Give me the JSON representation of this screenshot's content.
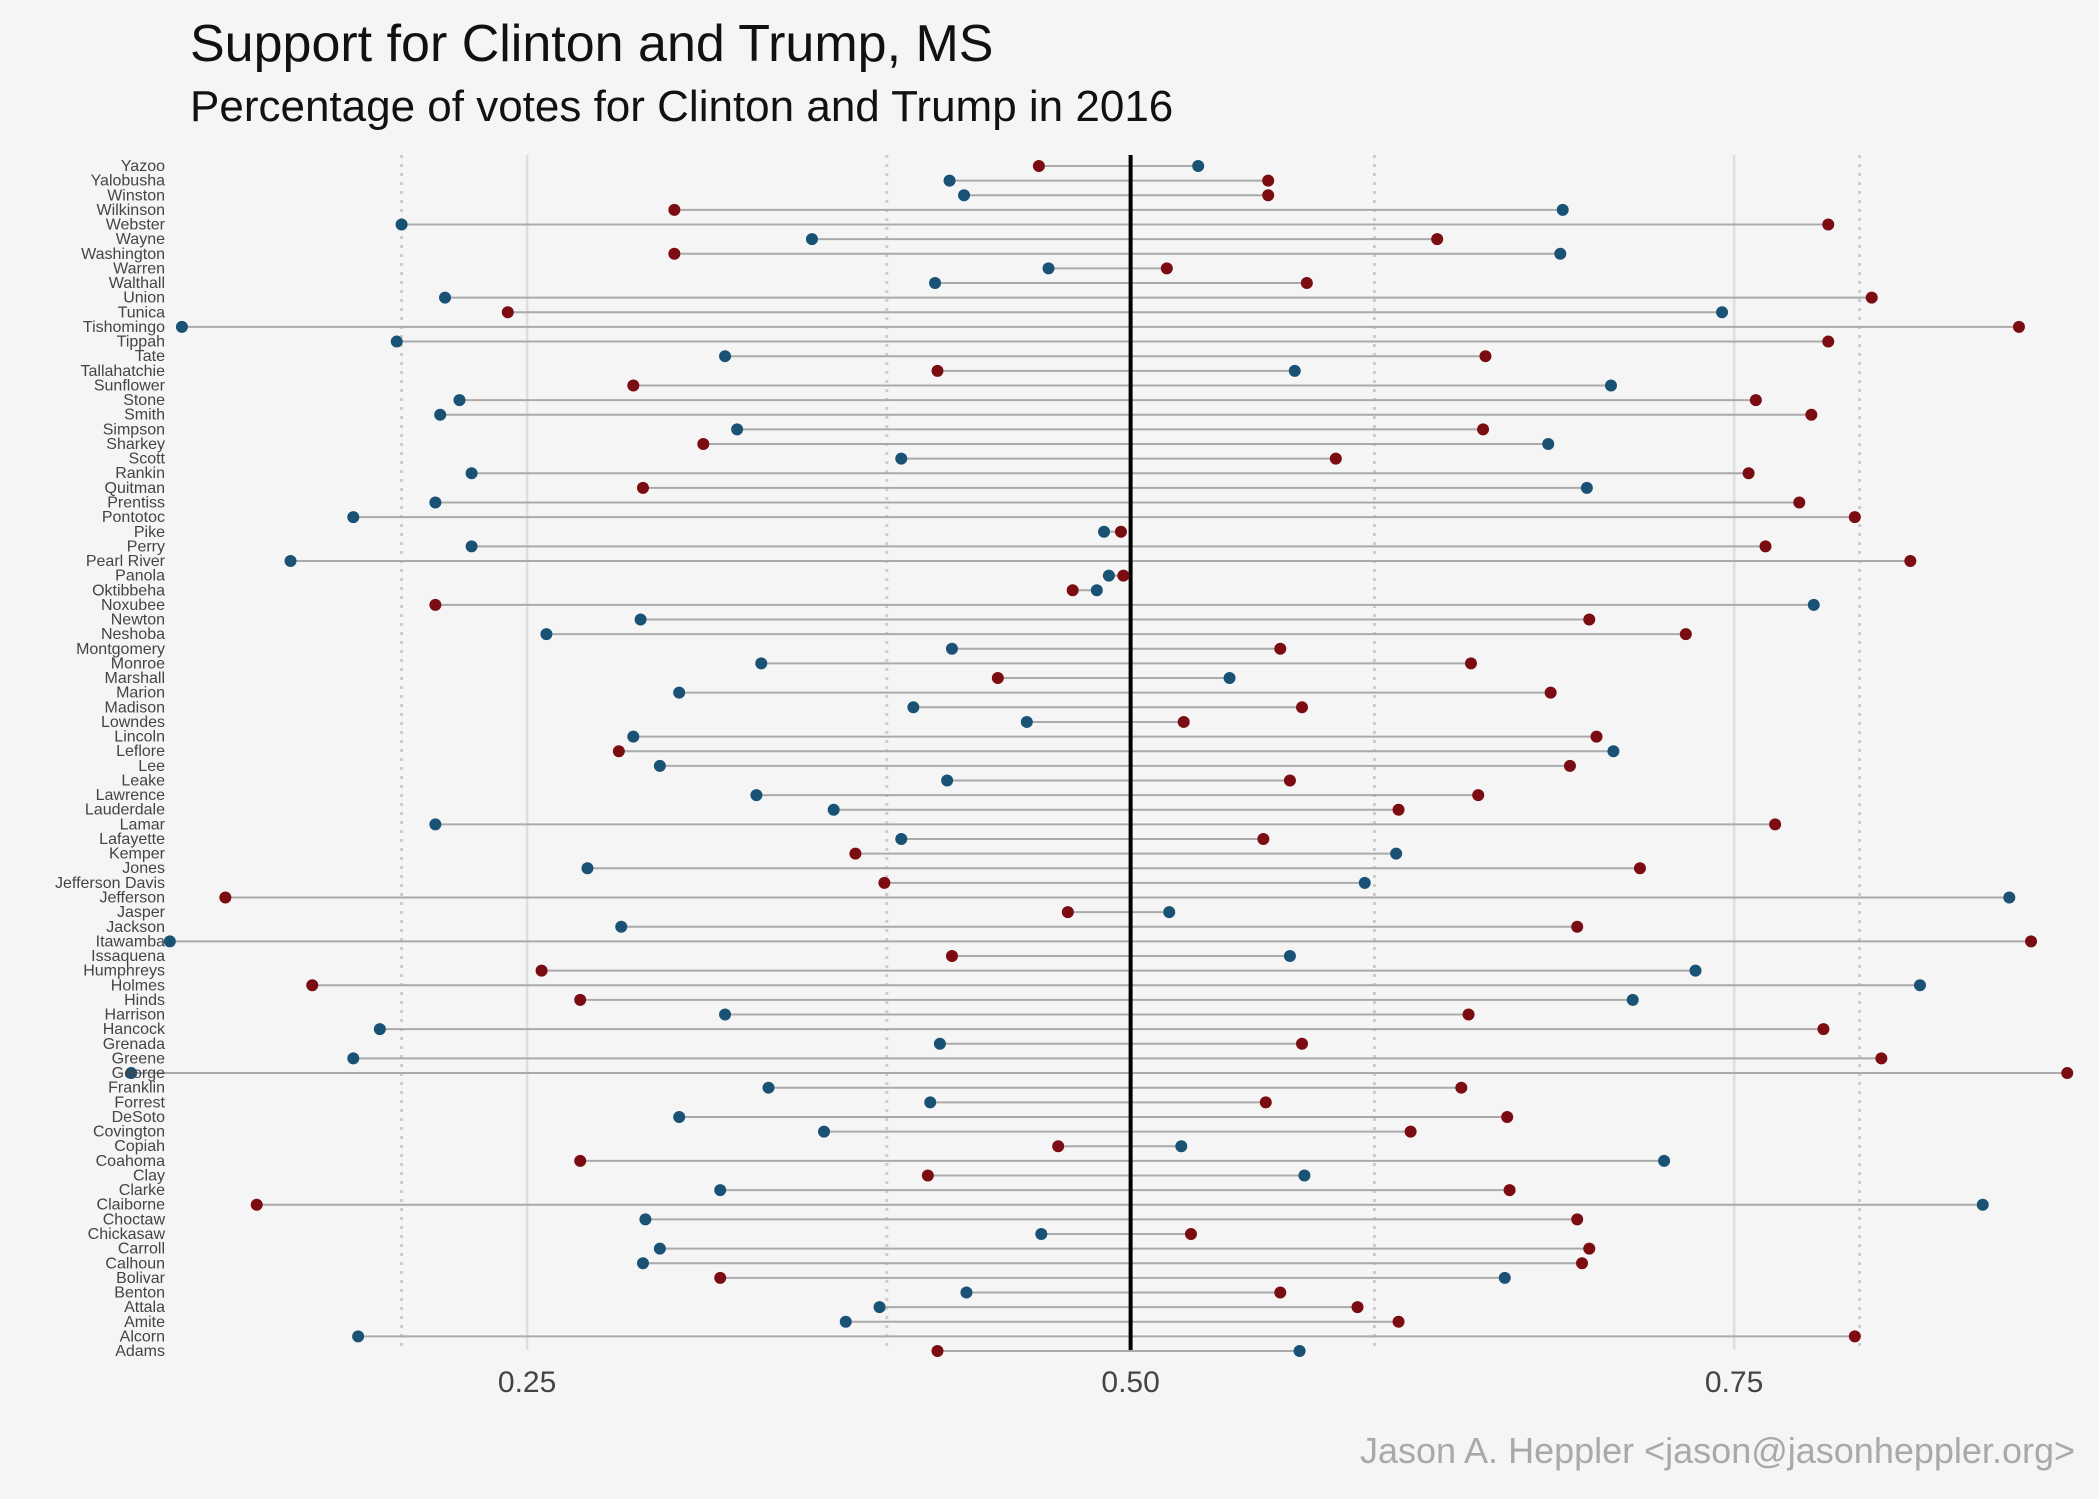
{
  "title": "Support for Clinton and Trump,  MS",
  "subtitle": "Percentage of votes for Clinton and Trump in 2016",
  "caption": "Jason A. Heppler <jason@jasonheppler.org>",
  "colors": {
    "clinton": "#1a5276",
    "trump": "#7b0c12",
    "connector": "#aaaaaa",
    "median": "#000000",
    "grid": "#dedede",
    "reference": "#cccccc"
  },
  "chart_data": {
    "type": "scatter",
    "style": "dumbbell",
    "title": "Support for Clinton and Trump,  MS",
    "subtitle": "Percentage of votes for Clinton and Trump in 2016",
    "xlabel": "",
    "ylabel": "",
    "xlim": [
      0.1,
      0.885
    ],
    "x_ticks": [
      0.25,
      0.5,
      0.75
    ],
    "x_tick_labels": [
      "0.25",
      "0.50",
      "0.75"
    ],
    "reference_lines": [
      0.198,
      0.399,
      0.601,
      0.802
    ],
    "median_line": 0.5,
    "grid": true,
    "legend": "none",
    "categories": [
      "Yazoo",
      "Yalobusha",
      "Winston",
      "Wilkinson",
      "Webster",
      "Wayne",
      "Washington",
      "Warren",
      "Walthall",
      "Union",
      "Tunica",
      "Tishomingo",
      "Tippah",
      "Tate",
      "Tallahatchie",
      "Sunflower",
      "Stone",
      "Smith",
      "Simpson",
      "Sharkey",
      "Scott",
      "Rankin",
      "Quitman",
      "Prentiss",
      "Pontotoc",
      "Pike",
      "Perry",
      "Pearl River",
      "Panola",
      "Oktibbeha",
      "Noxubee",
      "Newton",
      "Neshoba",
      "Montgomery",
      "Monroe",
      "Marshall",
      "Marion",
      "Madison",
      "Lowndes",
      "Lincoln",
      "Leflore",
      "Lee",
      "Leake",
      "Lawrence",
      "Lauderdale",
      "Lamar",
      "Lafayette",
      "Kemper",
      "Jones",
      "Jefferson Davis",
      "Jefferson",
      "Jasper",
      "Jackson",
      "Itawamba",
      "Issaquena",
      "Humphreys",
      "Holmes",
      "Hinds",
      "Harrison",
      "Hancock",
      "Grenada",
      "Greene",
      "George",
      "Franklin",
      "Forrest",
      "DeSoto",
      "Covington",
      "Copiah",
      "Coahoma",
      "Clay",
      "Clarke",
      "Claiborne",
      "Choctaw",
      "Chickasaw",
      "Carroll",
      "Calhoun",
      "Bolivar",
      "Benton",
      "Attala",
      "Amite",
      "Alcorn",
      "Adams"
    ],
    "series": [
      {
        "name": "Clinton",
        "values": [
          0.528,
          0.425,
          0.431,
          0.679,
          0.198,
          0.368,
          0.678,
          0.466,
          0.419,
          0.216,
          0.745,
          0.107,
          0.196,
          0.332,
          0.568,
          0.699,
          0.222,
          0.214,
          0.337,
          0.673,
          0.405,
          0.227,
          0.689,
          0.212,
          0.178,
          0.489,
          0.227,
          0.152,
          0.491,
          0.486,
          0.783,
          0.297,
          0.258,
          0.426,
          0.347,
          0.541,
          0.313,
          0.41,
          0.457,
          0.294,
          0.7,
          0.305,
          0.424,
          0.345,
          0.377,
          0.212,
          0.405,
          0.61,
          0.275,
          0.597,
          0.864,
          0.516,
          0.289,
          0.102,
          0.566,
          0.734,
          0.827,
          0.708,
          0.332,
          0.189,
          0.421,
          0.178,
          0.086,
          0.35,
          0.417,
          0.313,
          0.373,
          0.521,
          0.721,
          0.572,
          0.33,
          0.853,
          0.299,
          0.463,
          0.305,
          0.298,
          0.655,
          0.432,
          0.396,
          0.382,
          0.18,
          0.57
        ]
      },
      {
        "name": "Trump",
        "values": [
          0.462,
          0.557,
          0.557,
          0.311,
          0.789,
          0.627,
          0.311,
          0.515,
          0.573,
          0.807,
          0.242,
          0.868,
          0.789,
          0.647,
          0.42,
          0.294,
          0.759,
          0.782,
          0.646,
          0.323,
          0.585,
          0.756,
          0.298,
          0.777,
          0.8,
          0.496,
          0.763,
          0.823,
          0.497,
          0.476,
          0.212,
          0.69,
          0.73,
          0.562,
          0.641,
          0.445,
          0.674,
          0.571,
          0.522,
          0.693,
          0.288,
          0.682,
          0.566,
          0.644,
          0.611,
          0.767,
          0.555,
          0.386,
          0.711,
          0.398,
          0.125,
          0.474,
          0.685,
          0.873,
          0.426,
          0.256,
          0.161,
          0.272,
          0.64,
          0.787,
          0.571,
          0.811,
          0.888,
          0.637,
          0.556,
          0.656,
          0.616,
          0.47,
          0.272,
          0.416,
          0.657,
          0.138,
          0.685,
          0.525,
          0.69,
          0.687,
          0.33,
          0.562,
          0.594,
          0.611,
          0.8,
          0.42
        ]
      }
    ]
  }
}
